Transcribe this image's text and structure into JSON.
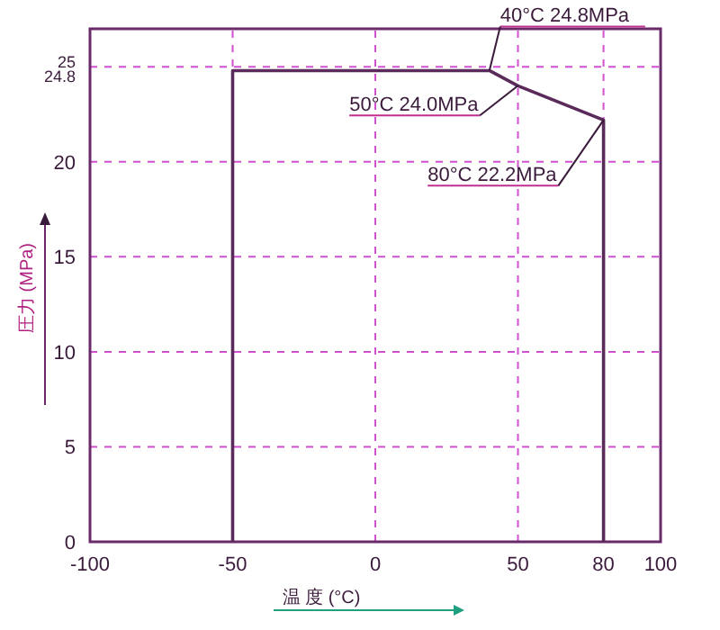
{
  "chart_data": {
    "type": "line",
    "xlabel": "温 度 (°C)",
    "ylabel": "圧力 (MPa)",
    "xlim": [
      -100,
      100
    ],
    "ylim": [
      0,
      27
    ],
    "xticks": [
      -100,
      -50,
      0,
      50,
      80,
      100
    ],
    "yticks": [
      0,
      5,
      10,
      15,
      20,
      24.8,
      25
    ],
    "grid": true,
    "marker": "none",
    "line_style": "solid",
    "series": [
      {
        "color": "#5a2a5a",
        "x": [
          -50,
          -50,
          40,
          50,
          80,
          80
        ],
        "values": [
          0,
          24.8,
          24.8,
          24.0,
          22.2,
          0
        ]
      }
    ],
    "annotations": [
      {
        "text": "40°C 24.8MPa",
        "x": 40,
        "y": 24.8
      },
      {
        "text": "50°C 24.0MPa",
        "x": 50,
        "y": 24.0
      },
      {
        "text": "80°C  22.2MPa",
        "x": 80,
        "y": 22.2
      }
    ]
  }
}
